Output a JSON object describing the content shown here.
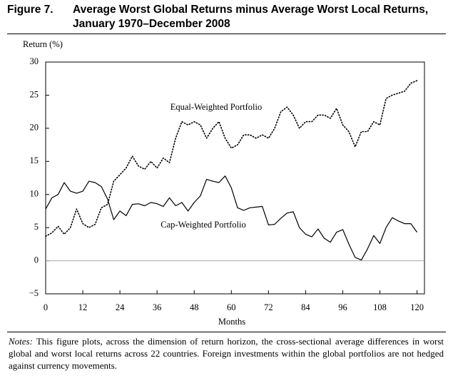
{
  "figure_label": "Figure 7.",
  "chart_data": {
    "type": "line",
    "title": "Average Worst Global Returns minus Average Worst Local Returns, January 1970–December 2008",
    "y_label": "Return (%)",
    "x_label": "Months",
    "x": [
      0,
      2,
      4,
      6,
      8,
      10,
      12,
      14,
      16,
      18,
      20,
      22,
      24,
      26,
      28,
      30,
      32,
      34,
      36,
      38,
      40,
      42,
      44,
      46,
      48,
      50,
      52,
      54,
      56,
      58,
      60,
      62,
      64,
      66,
      68,
      70,
      72,
      74,
      76,
      78,
      80,
      82,
      84,
      86,
      88,
      90,
      92,
      94,
      96,
      98,
      100,
      102,
      104,
      106,
      108,
      110,
      112,
      114,
      116,
      118,
      120
    ],
    "series": [
      {
        "name": "Equal-Weighted Portfolio",
        "color": "#000000",
        "dash": "dotted",
        "values": [
          3.7,
          4.2,
          5.2,
          4,
          5,
          7.8,
          5.6,
          5,
          5.5,
          8,
          8.5,
          12,
          13,
          14,
          15.8,
          14.3,
          13.8,
          15,
          14,
          15.5,
          14.8,
          18.5,
          21,
          20.5,
          21,
          20.5,
          18.5,
          20,
          21,
          18.5,
          17,
          17.5,
          19,
          19,
          18.5,
          19,
          18.5,
          20,
          22.5,
          23.2,
          22,
          20,
          21,
          21,
          22,
          22,
          21.5,
          23,
          20.5,
          19.5,
          17.2,
          19.5,
          19.5,
          21,
          20.5,
          24.5,
          25,
          25.3,
          25.6,
          26.8,
          27.2
        ]
      },
      {
        "name": "Cap-Weighted Portfolio",
        "color": "#000000",
        "dash": "solid",
        "values": [
          7.8,
          9.5,
          10,
          11.8,
          10.5,
          10.2,
          10.5,
          12,
          11.8,
          11.2,
          9.3,
          6.2,
          7.5,
          6.8,
          8.5,
          8.6,
          8.3,
          8.8,
          8.6,
          8.2,
          9.5,
          8.3,
          8.8,
          7.5,
          8.8,
          9.8,
          12.3,
          12,
          11.8,
          12.8,
          11,
          8,
          7.6,
          8,
          8.1,
          8.2,
          5.4,
          5.5,
          6.4,
          7.2,
          7.4,
          5,
          4,
          3.6,
          4.8,
          3.4,
          2.8,
          4.3,
          4.7,
          2.5,
          0.5,
          0.1,
          1.8,
          3.8,
          2.6,
          5,
          6.5,
          6,
          5.6,
          5.6,
          4.3
        ]
      }
    ],
    "xlim": [
      0,
      122.4
    ],
    "ylim": [
      -5,
      30
    ],
    "xticks": [
      0,
      12,
      24,
      36,
      48,
      60,
      72,
      84,
      96,
      108,
      120
    ],
    "yticks": [
      {
        "value": -5,
        "label": "−5"
      },
      0,
      5,
      10,
      15,
      20,
      25,
      30
    ],
    "zero_line": true
  },
  "notes_label": "Notes:",
  "notes": "This figure plots, across the dimension of return horizon, the cross-sectional average differences in worst global and worst local returns across 22 countries. Foreign investments within the global portfolios are not hedged against currency movements."
}
